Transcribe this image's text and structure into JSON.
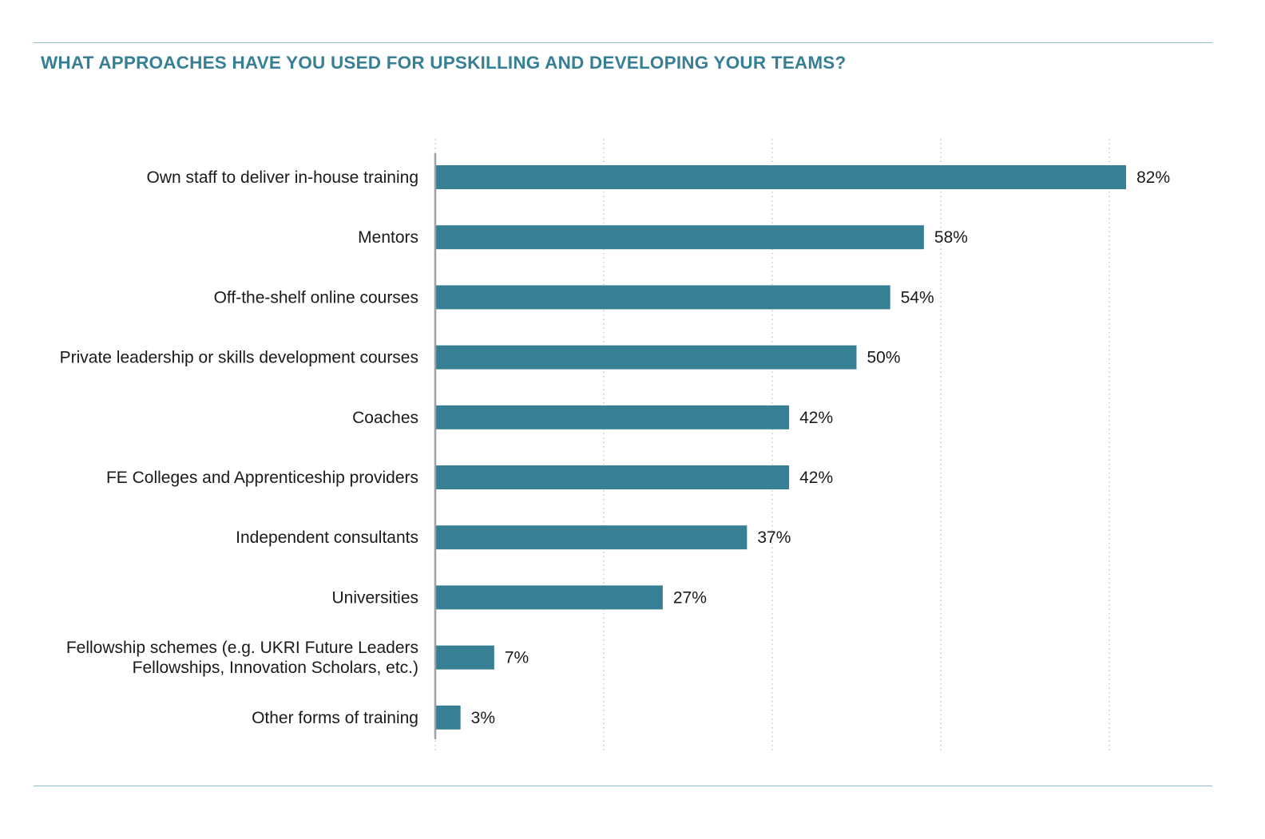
{
  "title": "WHAT APPROACHES HAVE YOU USED FOR UPSKILLING AND DEVELOPING YOUR TEAMS?",
  "colors": {
    "accent": "#367f94",
    "bar": "#367f94",
    "rule": "#8fbcc7",
    "grid": "#c8c8c8",
    "axis": "#a0a0a0",
    "text": "#1a1a1a"
  },
  "chart_data": {
    "type": "bar",
    "orientation": "horizontal",
    "categories": [
      [
        "Own staff to deliver in-house training"
      ],
      [
        "Mentors"
      ],
      [
        "Off-the-shelf online courses"
      ],
      [
        "Private leadership or skills development courses"
      ],
      [
        "Coaches"
      ],
      [
        "FE Colleges and Apprenticeship providers"
      ],
      [
        "Independent consultants"
      ],
      [
        "Universities"
      ],
      [
        "Fellowship schemes (e.g. UKRI Future Leaders",
        "Fellowships, Innovation Scholars, etc.)"
      ],
      [
        "Other forms of training"
      ]
    ],
    "values": [
      82,
      58,
      54,
      50,
      42,
      42,
      37,
      27,
      7,
      3
    ],
    "value_labels": [
      "82%",
      "58%",
      "54%",
      "50%",
      "42%",
      "42%",
      "37%",
      "27%",
      "7%",
      "3%"
    ],
    "xlim": [
      0,
      80
    ],
    "grid": true,
    "grid_step": 20,
    "xlabel": "",
    "ylabel": ""
  }
}
